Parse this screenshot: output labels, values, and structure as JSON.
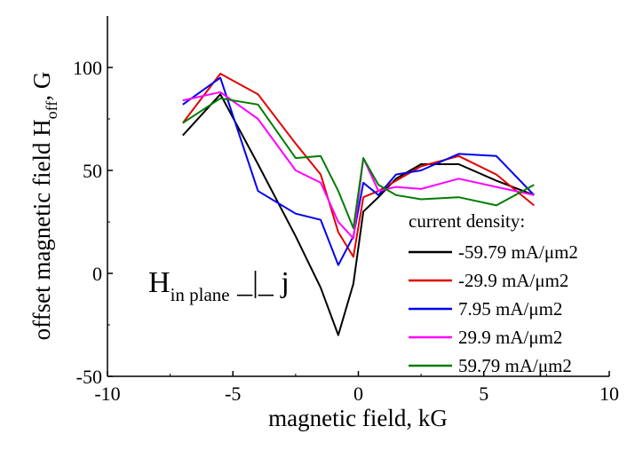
{
  "chart_data": {
    "type": "line",
    "xlabel": "magnetic field, kG",
    "ylabel": {
      "main": "offset magnetic field H",
      "sub": "off",
      "tail": ", G"
    },
    "xlim": [
      -10,
      10
    ],
    "ylim": [
      -50,
      125
    ],
    "xticks": [
      -10,
      -5,
      0,
      5,
      10
    ],
    "yticks": [
      -50,
      0,
      50,
      100
    ],
    "grid": false,
    "legend": {
      "title": "current density:",
      "placement": "lower-right"
    },
    "annotation": {
      "main": "H",
      "sub": "in plane",
      "tail": " _|_ j"
    },
    "series": [
      {
        "name": "-59.79 mA/μm2",
        "color": "#000000",
        "x": [
          -7,
          -5.5,
          -4,
          -2.5,
          -1.5,
          -0.8,
          -0.2,
          0.2,
          0.8,
          1.5,
          2.5,
          4,
          5.5,
          7
        ],
        "y": [
          67,
          87,
          53,
          18,
          -7,
          -30,
          -5,
          30,
          37,
          46,
          53,
          53,
          45,
          38
        ]
      },
      {
        "name": "-29.9 mA/μm2",
        "color": "#e00000",
        "x": [
          -7,
          -5.5,
          -4,
          -2.5,
          -1.5,
          -0.8,
          -0.2,
          0.2,
          0.8,
          1.5,
          2.5,
          4,
          5.5,
          7
        ],
        "y": [
          73,
          97,
          87,
          63,
          48,
          20,
          8,
          37,
          40,
          45,
          52,
          57,
          48,
          33
        ]
      },
      {
        "name": "7.95 mA/μm2",
        "color": "#0000ee",
        "x": [
          -7,
          -5.5,
          -4,
          -2.5,
          -1.5,
          -0.8,
          -0.2,
          0.2,
          0.8,
          1.5,
          2.5,
          4,
          5.5,
          7
        ],
        "y": [
          82,
          95,
          40,
          29,
          26,
          4,
          18,
          44,
          38,
          48,
          50,
          58,
          57,
          38
        ]
      },
      {
        "name": "29.9 mA/μm2",
        "color": "#ff00ff",
        "x": [
          -7,
          -5.5,
          -4,
          -2.5,
          -1.5,
          -0.8,
          -0.2,
          0.2,
          0.8,
          1.5,
          2.5,
          4,
          5.5,
          7
        ],
        "y": [
          84,
          88,
          75,
          50,
          44,
          25,
          17,
          56,
          40,
          42,
          41,
          46,
          42,
          38
        ]
      },
      {
        "name": "59.79 mA/μm2",
        "color": "#007d00",
        "x": [
          -7,
          -5.5,
          -4,
          -2.5,
          -1.5,
          -0.8,
          -0.2,
          0.2,
          0.8,
          1.5,
          2.5,
          4,
          5.5,
          7
        ],
        "y": [
          73,
          85,
          82,
          56,
          57,
          40,
          22,
          56,
          43,
          38,
          36,
          37,
          33,
          43
        ]
      }
    ]
  }
}
